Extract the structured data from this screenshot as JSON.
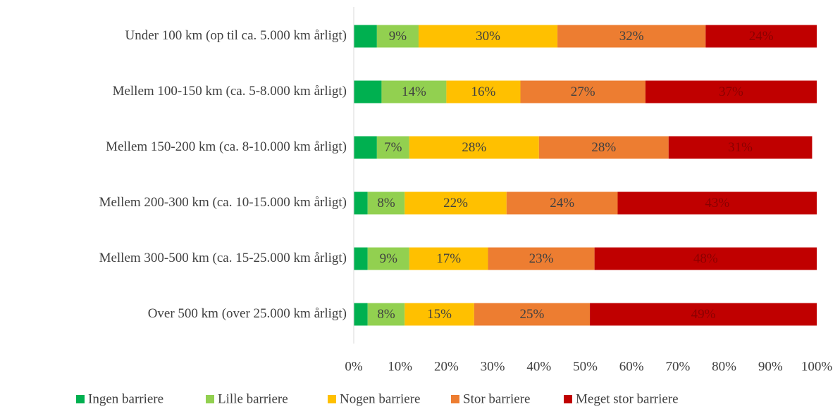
{
  "chart_data": {
    "type": "stacked_bar_horizontal",
    "categories": [
      "Under 100 km (op til ca. 5.000 km årligt)",
      "Mellem 100-150 km (ca. 5-8.000 km årligt)",
      "Mellem 150-200 km (ca. 8-10.000 km årligt)",
      "Mellem 200-300 km (ca. 10-15.000 km årligt)",
      "Mellem 300-500 km (ca. 15-25.000 km årligt)",
      "Over 500 km (over 25.000 km årligt)"
    ],
    "series": [
      {
        "name": "Ingen barriere",
        "color": "#00b050",
        "values": [
          5,
          6,
          5,
          3,
          3,
          3
        ]
      },
      {
        "name": "Lille barriere",
        "color": "#92d050",
        "values": [
          9,
          14,
          7,
          8,
          9,
          8
        ],
        "value_labels": [
          "9%",
          "14%",
          "7%",
          "8%",
          "9%",
          "8%"
        ]
      },
      {
        "name": "Nogen barriere",
        "color": "#ffc000",
        "values": [
          30,
          16,
          28,
          22,
          17,
          15
        ],
        "value_labels": [
          "30%",
          "16%",
          "28%",
          "22%",
          "17%",
          "15%"
        ]
      },
      {
        "name": "Stor barriere",
        "color": "#ed7d31",
        "values": [
          32,
          27,
          28,
          24,
          23,
          25
        ],
        "value_labels": [
          "32%",
          "27%",
          "28%",
          "24%",
          "23%",
          "25%"
        ]
      },
      {
        "name": "Meget stor barriere",
        "color": "#c00000",
        "values": [
          24,
          37,
          31,
          43,
          48,
          49
        ],
        "value_labels": [
          "24%",
          "37%",
          "31%",
          "43%",
          "48%",
          "49%"
        ]
      }
    ],
    "xlim": [
      0,
      100
    ],
    "xticks": [
      {
        "value": 0,
        "label": "0%"
      },
      {
        "value": 10,
        "label": "10%"
      },
      {
        "value": 20,
        "label": "20%"
      },
      {
        "value": 30,
        "label": "30%"
      },
      {
        "value": 40,
        "label": "40%"
      },
      {
        "value": 50,
        "label": "50%"
      },
      {
        "value": 60,
        "label": "60%"
      },
      {
        "value": 70,
        "label": "70%"
      },
      {
        "value": 80,
        "label": "80%"
      },
      {
        "value": 90,
        "label": "90%"
      },
      {
        "value": 100,
        "label": "100%"
      }
    ],
    "legend": "bottom"
  }
}
